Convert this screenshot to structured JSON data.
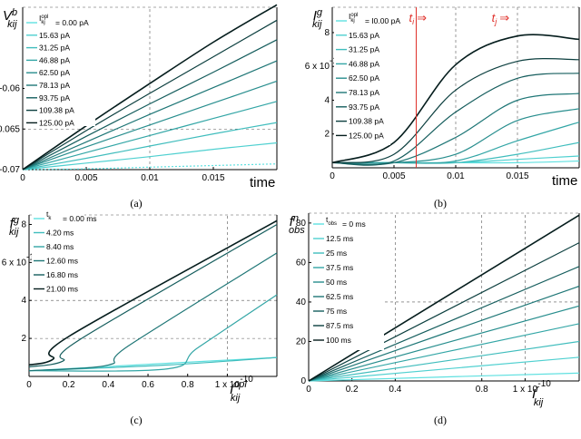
{
  "chart_data": [
    {
      "type": "line",
      "panel": "a",
      "caption": "(a)",
      "ylabel": "V",
      "ylabel_sup": "b",
      "ylabel_sub": "kij",
      "xlabel": "time",
      "xlim": [
        0,
        0.02
      ],
      "ylim": [
        -0.07,
        -0.05
      ],
      "xticks": [
        "0",
        "0.005",
        "0.01",
        "0.015"
      ],
      "yticks": [
        "-0.07",
        "-0.065",
        "-0.06"
      ],
      "legend_title": "I opl kj",
      "legend_sup": "opl",
      "legend_sub": "kj",
      "legend": [
        "= 0.00 pA",
        "15.63 pA",
        "31.25 pA",
        "46.88 pA",
        "62.50 pA",
        "78.13 pA",
        "93.75 pA",
        "109.38 pA",
        "125.00 pA"
      ],
      "series": [
        {
          "name": "0.00 pA",
          "x": [
            0,
            0.005,
            0.01,
            0.015,
            0.02
          ],
          "values": [
            -0.07,
            -0.0699,
            -0.0697,
            -0.0695,
            -0.0693
          ]
        },
        {
          "name": "15.63 pA",
          "x": [
            0,
            0.005,
            0.01,
            0.015,
            0.02
          ],
          "values": [
            -0.07,
            -0.0692,
            -0.0684,
            -0.0675,
            -0.0667
          ]
        },
        {
          "name": "31.25 pA",
          "x": [
            0,
            0.005,
            0.01,
            0.015,
            0.02
          ],
          "values": [
            -0.07,
            -0.0686,
            -0.0671,
            -0.0656,
            -0.0642
          ]
        },
        {
          "name": "46.88 pA",
          "x": [
            0,
            0.005,
            0.01,
            0.015,
            0.02
          ],
          "values": [
            -0.07,
            -0.0679,
            -0.0658,
            -0.0637,
            -0.0616
          ]
        },
        {
          "name": "62.50 pA",
          "x": [
            0,
            0.005,
            0.01,
            0.015,
            0.02
          ],
          "values": [
            -0.07,
            -0.0672,
            -0.0645,
            -0.0618,
            -0.0591
          ]
        },
        {
          "name": "78.13 pA",
          "x": [
            0,
            0.005,
            0.01,
            0.015,
            0.02
          ],
          "values": [
            -0.07,
            -0.0666,
            -0.0632,
            -0.0599,
            -0.0566
          ]
        },
        {
          "name": "93.75 pA",
          "x": [
            0,
            0.005,
            0.01,
            0.015,
            0.02
          ],
          "values": [
            -0.07,
            -0.0659,
            -0.0619,
            -0.058,
            -0.054
          ]
        },
        {
          "name": "109.38 pA",
          "x": [
            0,
            0.005,
            0.01,
            0.015,
            0.02
          ],
          "values": [
            -0.07,
            -0.0652,
            -0.0606,
            -0.0561,
            -0.0516
          ]
        },
        {
          "name": "125.00 pA",
          "x": [
            0,
            0.005,
            0.01,
            0.015,
            0.02
          ],
          "values": [
            -0.07,
            -0.0646,
            -0.0594,
            -0.0543,
            -0.0497
          ]
        }
      ]
    },
    {
      "type": "line",
      "panel": "b",
      "caption": "(b)",
      "ylabel": "I",
      "ylabel_sup": "g",
      "ylabel_sub": "kij",
      "xlabel": "time",
      "xlim": [
        0,
        0.02
      ],
      "ylim": [
        0,
        9.5e-11
      ],
      "xticks": [
        "0",
        "0.005",
        "0.01",
        "0.015"
      ],
      "yticks": [
        "2",
        "4",
        "6 x 10",
        "8"
      ],
      "y_exponent": "-11",
      "legend_title": "I opl kj",
      "legend_sup": "opl",
      "legend_sub": "kj",
      "legend": [
        "= I0.00 pA",
        "15.63 pA",
        "31.25 pA",
        "46.88 pA",
        "62.50 pA",
        "78.13 pA",
        "93.75 pA",
        "109.38 pA",
        "125.00 pA"
      ],
      "annotations": [
        {
          "text": "t",
          "sub": "i",
          "arrow": "⇒",
          "x": 0.0068
        },
        {
          "text": "t",
          "sub": "j",
          "arrow": "⇒",
          "x": 0.0135
        }
      ],
      "vline_x": 0.0068,
      "series": [
        {
          "name": "0.00 pA",
          "x": [
            0,
            0.005,
            0.01,
            0.015,
            0.02
          ],
          "values": [
            3e-12,
            3e-12,
            3e-12,
            3e-12,
            4e-12
          ]
        },
        {
          "name": "15.63 pA",
          "x": [
            0,
            0.005,
            0.01,
            0.015,
            0.02
          ],
          "values": [
            3e-12,
            3e-12,
            3e-12,
            5e-12,
            7e-12
          ]
        },
        {
          "name": "31.25 pA",
          "x": [
            0,
            0.005,
            0.01,
            0.015,
            0.02
          ],
          "values": [
            3e-12,
            3e-12,
            3e-12,
            8e-12,
            1.5e-11
          ]
        },
        {
          "name": "46.88 pA",
          "x": [
            0,
            0.005,
            0.01,
            0.015,
            0.02
          ],
          "values": [
            3e-12,
            3e-12,
            4e-12,
            1.6e-11,
            2.7e-11
          ]
        },
        {
          "name": "62.50 pA",
          "x": [
            0,
            0.005,
            0.01,
            0.015,
            0.02
          ],
          "values": [
            3e-12,
            3e-12,
            8e-12,
            2.8e-11,
            3.5e-11
          ]
        },
        {
          "name": "78.13 pA",
          "x": [
            0,
            0.005,
            0.01,
            0.015,
            0.02
          ],
          "values": [
            3e-12,
            3e-12,
            1.8e-11,
            4e-11,
            4.4e-11
          ]
        },
        {
          "name": "93.75 pA",
          "x": [
            0,
            0.005,
            0.01,
            0.015,
            0.02
          ],
          "values": [
            3e-12,
            4e-12,
            3.3e-11,
            5.3e-11,
            5.6e-11
          ]
        },
        {
          "name": "109.38 pA",
          "x": [
            0,
            0.005,
            0.01,
            0.015,
            0.02
          ],
          "values": [
            3e-12,
            8e-12,
            4.6e-11,
            6.3e-11,
            6.4e-11
          ]
        },
        {
          "name": "125.00 pA",
          "x": [
            0,
            0.005,
            0.01,
            0.015,
            0.02
          ],
          "values": [
            3e-12,
            1.5e-11,
            6.1e-11,
            7.8e-11,
            7.6e-11
          ]
        }
      ]
    },
    {
      "type": "line",
      "panel": "c",
      "caption": "(c)",
      "ylabel": "f",
      "ylabel_sup": "g",
      "ylabel_sub": "kij",
      "xlabel": "I",
      "xlabel_sup": "opl",
      "xlabel_sub": "kij",
      "xlim": [
        0,
        1.25e-10
      ],
      "ylim": [
        0,
        8.5e-11
      ],
      "xticks": [
        "0",
        "0.2",
        "0.4",
        "0.6",
        "0.8",
        "1 x 10"
      ],
      "x_exponent": "-10",
      "yticks": [
        "2",
        "4",
        "6 x 10",
        "8"
      ],
      "y_exponent": "-11",
      "legend_title": "t",
      "legend_sub": "k",
      "legend": [
        "= 0.00 ms",
        "4.20 ms",
        "8.40 ms",
        "12.60 ms",
        "16.80 ms",
        "21.00 ms"
      ],
      "series": [
        {
          "name": "0.00 ms",
          "x": [
            0,
            1.25e-10
          ],
          "values": [
            3e-12,
            1e-11
          ]
        },
        {
          "name": "4.20 ms",
          "x": [
            0,
            7e-11,
            1.25e-10
          ],
          "values": [
            3e-12,
            6e-12,
            1e-11
          ]
        },
        {
          "name": "8.40 ms",
          "x": [
            0,
            7e-11,
            8.5e-11,
            1.25e-10
          ],
          "values": [
            3e-12,
            4e-12,
            1.5e-11,
            4.3e-11
          ]
        },
        {
          "name": "12.60 ms",
          "x": [
            0,
            4e-11,
            5e-11,
            1.25e-10
          ],
          "values": [
            3e-12,
            6e-12,
            1.6e-11,
            6.5e-11
          ]
        },
        {
          "name": "16.80 ms",
          "x": [
            0,
            1.7e-11,
            2.5e-11,
            1.25e-10
          ],
          "values": [
            5e-12,
            8e-12,
            1.9e-11,
            8e-11
          ]
        },
        {
          "name": "21.00 ms",
          "x": [
            0,
            1.2e-11,
            2e-11,
            1.25e-10
          ],
          "values": [
            6e-12,
            9e-12,
            2.1e-11,
            8.2e-11
          ]
        }
      ]
    },
    {
      "type": "line",
      "panel": "d",
      "caption": "(d)",
      "ylabel": "f",
      "ylabel_sup": "n",
      "ylabel_sub": "obs",
      "xlabel": "I",
      "xlabel_sup": "r",
      "xlabel_sub": "kij",
      "xlim": [
        0,
        1.25e-10
      ],
      "ylim": [
        0,
        85
      ],
      "xticks": [
        "0",
        "0.2",
        "0.4",
        "0.8",
        "1 x 10"
      ],
      "x_exponent": "-10",
      "yticks": [
        "0",
        "20",
        "40",
        "60",
        "80"
      ],
      "legend_title": "t",
      "legend_sub": "obs",
      "legend": [
        "= 0 ms",
        "12.5 ms",
        "25 ms",
        "37.5 ms",
        "50 ms",
        "62.5 ms",
        "75 ms",
        "87.5 ms",
        "100 ms"
      ],
      "series": [
        {
          "name": "0 ms",
          "x": [
            0,
            1.25e-10
          ],
          "values": [
            0,
            4
          ]
        },
        {
          "name": "12.5 ms",
          "x": [
            0,
            1.25e-10
          ],
          "values": [
            0,
            12
          ]
        },
        {
          "name": "25 ms",
          "x": [
            0,
            1.25e-10
          ],
          "values": [
            0,
            20
          ]
        },
        {
          "name": "37.5 ms",
          "x": [
            0,
            1.25e-10
          ],
          "values": [
            0,
            29
          ]
        },
        {
          "name": "50 ms",
          "x": [
            0,
            1.25e-10
          ],
          "values": [
            0,
            38
          ]
        },
        {
          "name": "62.5 ms",
          "x": [
            0,
            1.25e-10
          ],
          "values": [
            0,
            48
          ]
        },
        {
          "name": "75 ms",
          "x": [
            0,
            1.25e-10
          ],
          "values": [
            0,
            58
          ]
        },
        {
          "name": "87.5 ms",
          "x": [
            0,
            1.25e-10
          ],
          "values": [
            0,
            70
          ]
        },
        {
          "name": "100 ms",
          "x": [
            0,
            1.25e-10
          ],
          "values": [
            0,
            84
          ]
        }
      ]
    }
  ],
  "palette": {
    "axis": "#000000",
    "grid": "#555555",
    "marker": "#e0302a",
    "series": [
      "#5fe0e0",
      "#4fd0d0",
      "#40bdbd",
      "#33a6a6",
      "#288e8e",
      "#1e7676",
      "#155d5d",
      "#0c3f3f",
      "#051d1d"
    ]
  }
}
